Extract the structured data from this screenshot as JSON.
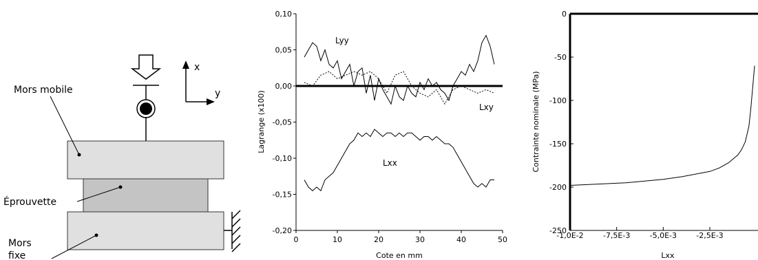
{
  "diagram": {
    "labels": {
      "moving_jaw": "Mors mobile",
      "specimen": "Éprouvette",
      "fixed_jaw_line1": "Mors",
      "fixed_jaw_line2": "fixe",
      "axis_x": "x",
      "axis_y": "y"
    },
    "colors": {
      "jaw_fill": "#e0e0e0",
      "specimen_fill": "#c4c4c4"
    }
  },
  "chart_data": [
    {
      "type": "line",
      "xlabel": "Cote en mm",
      "ylabel": "Lagrange (x100)",
      "xlim": [
        0,
        50
      ],
      "ylim": [
        -0.2,
        0.1
      ],
      "xticks": [
        0,
        10,
        20,
        30,
        40,
        50
      ],
      "xtick_labels": [
        "0",
        "10",
        "20",
        "30",
        "40",
        "50"
      ],
      "yticks": [
        0.1,
        0.05,
        0,
        -0.05,
        -0.1,
        -0.15,
        -0.2
      ],
      "ytick_labels": [
        "0,10",
        "0,05",
        "0,00",
        "-0,05",
        "-0,10",
        "-0,15",
        "-0,20"
      ],
      "series": [
        {
          "name": "Lyy",
          "style": "solid",
          "x": [
            2,
            3,
            4,
            5,
            6,
            7,
            8,
            9,
            10,
            11,
            12,
            13,
            14,
            15,
            16,
            17,
            18,
            19,
            20,
            21,
            22,
            23,
            24,
            25,
            26,
            27,
            28,
            29,
            30,
            31,
            32,
            33,
            34,
            35,
            36,
            37,
            38,
            39,
            40,
            41,
            42,
            43,
            44,
            45,
            46,
            47,
            48
          ],
          "values": [
            0.04,
            0.05,
            0.06,
            0.055,
            0.035,
            0.05,
            0.03,
            0.025,
            0.035,
            0.01,
            0.02,
            0.03,
            0.0,
            0.02,
            0.025,
            -0.01,
            0.015,
            -0.02,
            0.01,
            -0.005,
            -0.015,
            -0.025,
            0.0,
            -0.015,
            -0.02,
            0.0,
            -0.01,
            -0.015,
            0.005,
            -0.005,
            0.01,
            0.0,
            0.005,
            -0.005,
            -0.01,
            -0.02,
            0.0,
            0.01,
            0.02,
            0.015,
            0.03,
            0.02,
            0.035,
            0.06,
            0.07,
            0.055,
            0.03
          ]
        },
        {
          "name": "Lxy",
          "style": "dotted",
          "x": [
            2,
            4,
            6,
            8,
            10,
            12,
            14,
            16,
            18,
            20,
            22,
            24,
            26,
            28,
            30,
            32,
            34,
            36,
            38,
            40,
            42,
            44,
            46,
            48
          ],
          "values": [
            0.005,
            0.0,
            0.015,
            0.02,
            0.01,
            0.015,
            0.02,
            0.015,
            0.02,
            0.01,
            -0.01,
            0.015,
            0.02,
            0.0,
            -0.01,
            -0.015,
            -0.005,
            -0.025,
            -0.005,
            0.0,
            -0.005,
            -0.01,
            -0.005,
            -0.01
          ]
        },
        {
          "name": "Lxx",
          "style": "solid",
          "x": [
            2,
            3,
            4,
            5,
            6,
            7,
            8,
            9,
            10,
            11,
            12,
            13,
            14,
            15,
            16,
            17,
            18,
            19,
            20,
            21,
            22,
            23,
            24,
            25,
            26,
            27,
            28,
            29,
            30,
            31,
            32,
            33,
            34,
            35,
            36,
            37,
            38,
            39,
            40,
            41,
            42,
            43,
            44,
            45,
            46,
            47,
            48
          ],
          "values": [
            -0.13,
            -0.14,
            -0.145,
            -0.14,
            -0.145,
            -0.13,
            -0.125,
            -0.12,
            -0.11,
            -0.1,
            -0.09,
            -0.08,
            -0.075,
            -0.065,
            -0.07,
            -0.065,
            -0.07,
            -0.06,
            -0.065,
            -0.07,
            -0.065,
            -0.065,
            -0.07,
            -0.065,
            -0.07,
            -0.065,
            -0.065,
            -0.07,
            -0.075,
            -0.07,
            -0.07,
            -0.075,
            -0.07,
            -0.075,
            -0.08,
            -0.08,
            -0.085,
            -0.095,
            -0.105,
            -0.115,
            -0.125,
            -0.135,
            -0.14,
            -0.135,
            -0.14,
            -0.13,
            -0.13
          ]
        }
      ]
    },
    {
      "type": "line",
      "xlabel": "Lxx",
      "ylabel": "Contrainte nominale (MPa)",
      "xlim": [
        -0.01,
        0.0
      ],
      "ylim": [
        -250,
        0
      ],
      "xticks": [
        -0.01,
        -0.0075,
        -0.005,
        -0.0025
      ],
      "xtick_labels": [
        "-1,0E-2",
        "-7,5E-3",
        "-5,0E-3",
        "-2,5E-3"
      ],
      "yticks": [
        0,
        -50,
        -100,
        -150,
        -200,
        -250
      ],
      "ytick_labels": [
        "0",
        "-50",
        "-100",
        "-150",
        "-200",
        "-250"
      ],
      "series": [
        {
          "style": "solid",
          "x": [
            -0.01,
            -0.009,
            -0.008,
            -0.007,
            -0.006,
            -0.005,
            -0.004,
            -0.003,
            -0.0025,
            -0.002,
            -0.0015,
            -0.001,
            -0.0008,
            -0.0006,
            -0.0004,
            -0.0003,
            -0.0002,
            -0.0001
          ],
          "values": [
            -198,
            -197,
            -196,
            -195,
            -193,
            -191,
            -188,
            -184,
            -182,
            -178,
            -172,
            -163,
            -157,
            -148,
            -130,
            -110,
            -85,
            -60
          ]
        }
      ]
    }
  ]
}
